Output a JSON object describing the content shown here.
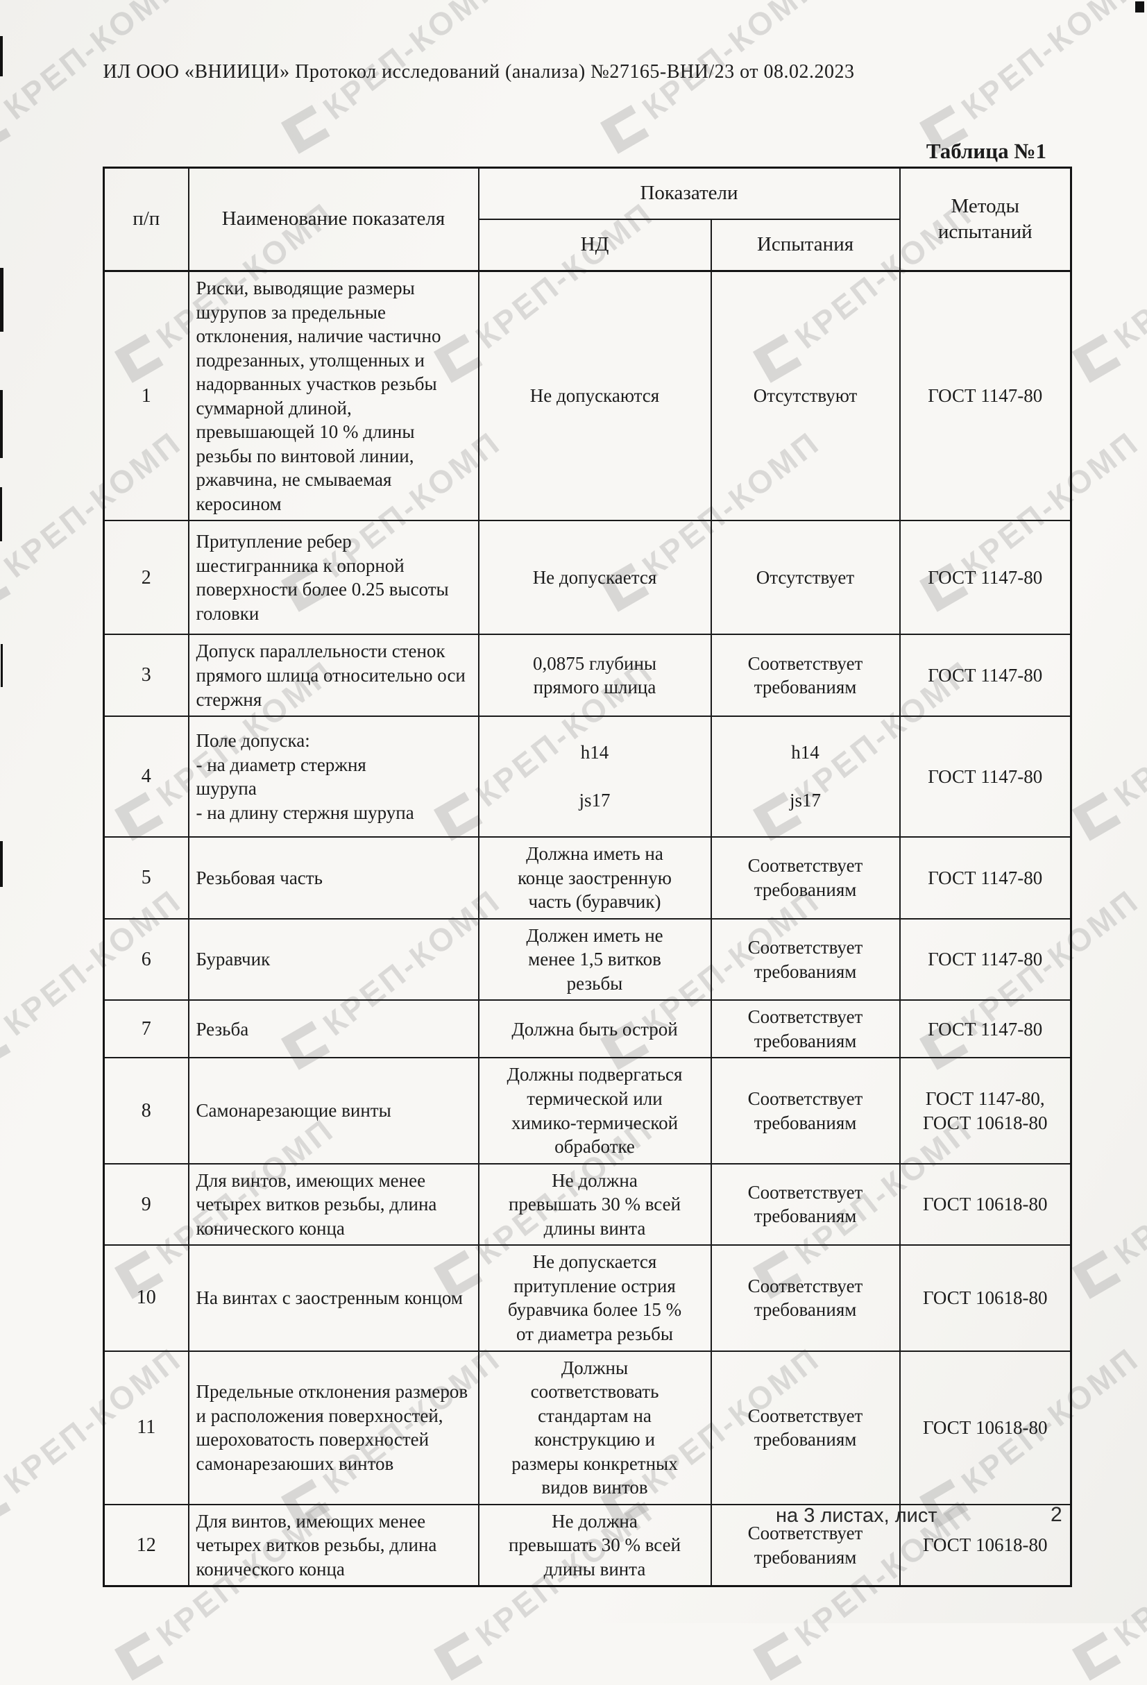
{
  "page": {
    "header_line": "ИЛ ООО «ВНИИЦИ»  Протокол исследований (анализа)  №27165-ВНИ/23 от  08.02.2023",
    "table_caption": "Таблица №1",
    "watermark_text": "КРЕП-КОМП",
    "footer": {
      "sheets_text": "на 3  листах, лист",
      "page_number": "2"
    }
  },
  "table": {
    "headers": {
      "col_num": "п/п",
      "col_name": "Наименование показателя",
      "col_indicators": "Показатели",
      "col_nd": "НД",
      "col_test": "Испытания",
      "col_methods": "Методы испытаний"
    },
    "rows": [
      {
        "num": "1",
        "name": "Риски, выводящие размеры шурупов за предельные отклонения, наличие частично подрезанных, утолщенных и надорванных участков резьбы суммарной длиной, превышающей 10 % длины резьбы по винтовой линии, ржавчина, не смываемая керосином",
        "nd": "Не допускаются",
        "test": "Отсутствуют",
        "method": "ГОСТ 1147-80"
      },
      {
        "num": "2",
        "name": "Притупление ребер шестигранника к опорной поверхности более 0.25 высоты головки",
        "nd": "Не допускается",
        "test": "Отсутствует",
        "method": "ГОСТ 1147-80"
      },
      {
        "num": "3",
        "name": "Допуск параллельности стенок прямого шлица относительно оси стержня",
        "nd": "0,0875 глубины\nпрямого шлица",
        "test": "Соответствует\nтребованиям",
        "method": "ГОСТ 1147-80"
      },
      {
        "num": "4",
        "name": "Поле допуска:\n- на диаметр стержня\nшурупа\n- на длину стержня шурупа",
        "nd": "h14\n\njs17",
        "test": "h14\n\njs17",
        "method": "ГОСТ 1147-80"
      },
      {
        "num": "5",
        "name": "Резьбовая часть",
        "nd": "Должна иметь на\nконце заостренную\nчасть (буравчик)",
        "test": "Соответствует\nтребованиям",
        "method": "ГОСТ 1147-80"
      },
      {
        "num": "6",
        "name": "Буравчик",
        "nd": "Должен иметь не\nменее 1,5 витков\nрезьбы",
        "test": "Соответствует\nтребованиям",
        "method": "ГОСТ 1147-80"
      },
      {
        "num": "7",
        "name": "Резьба",
        "nd": "Должна быть острой",
        "test": "Соответствует\nтребованиям",
        "method": "ГОСТ 1147-80"
      },
      {
        "num": "8",
        "name": "Самонарезающие винты",
        "nd": "Должны подвергаться\nтермической или\nхимико-термической\nобработке",
        "test": "Соответствует\nтребованиям",
        "method": "ГОСТ 1147-80,\nГОСТ 10618-80"
      },
      {
        "num": "9",
        "name": "Для винтов, имеющих менее четырех витков резьбы, длина конического конца",
        "nd": "Не должна\nпревышать 30 % всей\nдлины винта",
        "test": "Соответствует\nтребованиям",
        "method": "ГОСТ 10618-80"
      },
      {
        "num": "10",
        "name": "На винтах с заостренным концом",
        "nd": "Не допускается\nпритупление острия\nбуравчика более 15 %\nот диаметра резьбы",
        "test": "Соответствует\nтребованиям",
        "method": "ГОСТ 10618-80"
      },
      {
        "num": "11",
        "name": "Предельные отклонения размеров и расположения поверхностей, шероховатость поверхностей самонарезаюших винтов",
        "nd": "Должны\nсоответствовать\nстандартам на\nконструкцию и\nразмеры конкретных\nвидов винтов",
        "test": "Соответствует\nтребованиям",
        "method": "ГОСТ 10618-80"
      },
      {
        "num": "12",
        "name": "Для винтов, имеющих менее четырех витков резьбы, длина конического конца",
        "nd": "Не должна\nпревышать 30 % всей\nдлины винта",
        "test": "Соответствует\nтребованиям",
        "method": "ГОСТ 10618-80"
      }
    ]
  }
}
